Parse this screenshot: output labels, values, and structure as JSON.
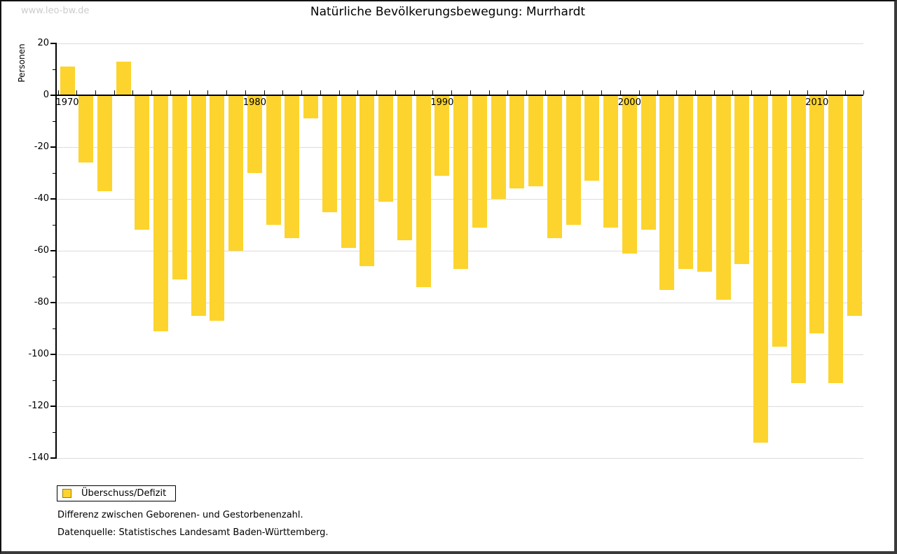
{
  "watermark": "www.leo-bw.de",
  "title": "Natürliche Bevölkerungsbewegung: Murrhardt",
  "ylabel": "Personen",
  "legend": {
    "label": "Überschuss/Defizit",
    "swatch_color": "#fcd42d",
    "swatch_border_color": "#a57c00"
  },
  "footnotes": {
    "line1": "Differenz zwischen Geborenen- und Gestorbenenzahl.",
    "line2": "Datenquelle: Statistisches Landesamt Baden-Württemberg."
  },
  "chart_data": {
    "type": "bar",
    "title": "Natürliche Bevölkerungsbewegung: Murrhardt",
    "xlabel": "",
    "ylabel": "Personen",
    "series_name": "Überschuss/Defizit",
    "years": [
      1970,
      1971,
      1972,
      1973,
      1974,
      1975,
      1976,
      1977,
      1978,
      1979,
      1980,
      1981,
      1982,
      1983,
      1984,
      1985,
      1986,
      1987,
      1988,
      1989,
      1990,
      1991,
      1992,
      1993,
      1994,
      1995,
      1996,
      1997,
      1998,
      1999,
      2000,
      2001,
      2002,
      2003,
      2004,
      2005,
      2006,
      2007,
      2008,
      2009,
      2010,
      2011,
      2012
    ],
    "values": [
      11,
      -26,
      -37,
      13,
      -52,
      -91,
      -71,
      -85,
      -87,
      -60,
      -30,
      -50,
      -55,
      -9,
      -45,
      -59,
      -66,
      -41,
      -56,
      -74,
      -31,
      -67,
      -51,
      -40,
      -36,
      -35,
      -55,
      -50,
      -33,
      -51,
      -61,
      -52,
      -75,
      -67,
      -68,
      -79,
      -65,
      -134,
      -97,
      -111,
      -92,
      -111,
      -85
    ],
    "ylim": [
      -140,
      20
    ],
    "ytick_step": 20,
    "ytick_minor_step": 10,
    "xtick_labels": [
      1970,
      1980,
      1990,
      2000,
      2010
    ],
    "bar_color": "#fcd42d",
    "grid": true,
    "gridline_color": "#dcdcdc",
    "legend_position": "bottom-left"
  }
}
